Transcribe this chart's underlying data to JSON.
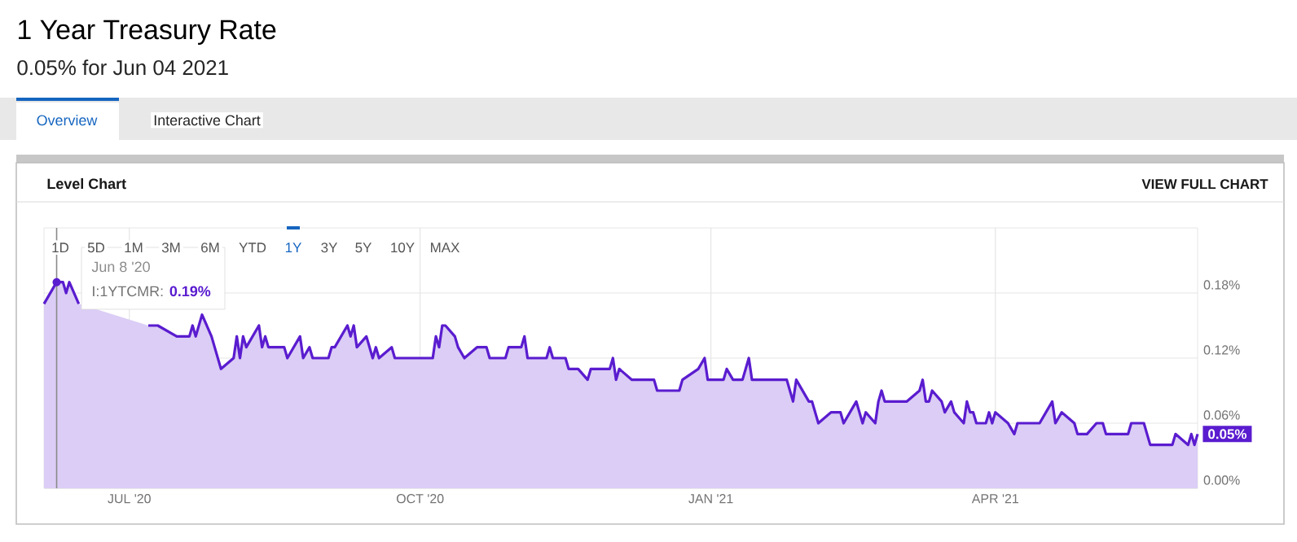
{
  "chart_data": {
    "type": "area",
    "title": "1 Year Treasury Rate",
    "subtitle": "0.05% for Jun 04 2021",
    "annotations": [
      "Overview",
      "Interactive Chart",
      "Level Chart",
      "VIEW FULL CHART",
      "1D",
      "5D",
      "1M",
      "3M",
      "6M",
      "YTD",
      "1Y",
      "3Y",
      "5Y",
      "10Y",
      "MAX",
      "Jun 8 '20",
      "I:1YTCMR:",
      "0.19%",
      {
        "text": "0.05%",
        "x": "2021-06-04",
        "y": 0.05
      }
    ],
    "x": [
      "2020-06-04",
      "2020-06-08",
      "2020-06-10",
      "2020-06-11",
      "2020-06-12",
      "2020-06-15",
      "2020-06-22",
      "2020-06-29",
      "2020-07-07",
      "2020-07-10",
      "2020-07-16",
      "2020-07-20",
      "2020-07-21",
      "2020-07-22",
      "2020-07-24",
      "2020-07-27",
      "2020-07-30",
      "2020-08-03",
      "2020-08-04",
      "2020-08-05",
      "2020-08-06",
      "2020-08-07",
      "2020-08-11",
      "2020-08-12",
      "2020-08-13",
      "2020-08-14",
      "2020-08-19",
      "2020-08-20",
      "2020-08-24",
      "2020-08-25",
      "2020-08-27",
      "2020-08-28",
      "2020-09-02",
      "2020-09-03",
      "2020-09-04",
      "2020-09-08",
      "2020-09-09",
      "2020-09-10",
      "2020-09-11",
      "2020-09-14",
      "2020-09-16",
      "2020-09-17",
      "2020-09-18",
      "2020-09-22",
      "2020-09-23",
      "2020-10-05",
      "2020-10-06",
      "2020-10-07",
      "2020-10-08",
      "2020-10-09",
      "2020-10-12",
      "2020-10-13",
      "2020-10-15",
      "2020-10-19",
      "2020-10-22",
      "2020-10-23",
      "2020-10-28",
      "2020-10-29",
      "2020-11-02",
      "2020-11-03",
      "2020-11-04",
      "2020-11-10",
      "2020-11-11",
      "2020-11-12",
      "2020-11-16",
      "2020-11-17",
      "2020-11-20",
      "2020-11-23",
      "2020-11-24",
      "2020-11-30",
      "2020-12-01",
      "2020-12-02",
      "2020-12-03",
      "2020-12-07",
      "2020-12-14",
      "2020-12-15",
      "2020-12-22",
      "2020-12-23",
      "2020-12-28",
      "2020-12-30",
      "2020-12-31",
      "2021-01-05",
      "2021-01-06",
      "2021-01-08",
      "2021-01-11",
      "2021-01-13",
      "2021-01-14",
      "2021-01-25",
      "2021-01-26",
      "2021-01-27",
      "2021-01-28",
      "2021-02-01",
      "2021-02-02",
      "2021-02-04",
      "2021-02-08",
      "2021-02-11",
      "2021-02-12",
      "2021-02-16",
      "2021-02-18",
      "2021-02-19",
      "2021-02-22",
      "2021-02-23",
      "2021-02-24",
      "2021-02-25",
      "2021-03-04",
      "2021-03-08",
      "2021-03-09",
      "2021-03-10",
      "2021-03-11",
      "2021-03-12",
      "2021-03-15",
      "2021-03-16",
      "2021-03-18",
      "2021-03-19",
      "2021-03-22",
      "2021-03-23",
      "2021-03-24",
      "2021-03-25",
      "2021-03-26",
      "2021-03-29",
      "2021-03-30",
      "2021-03-31",
      "2021-04-01",
      "2021-04-05",
      "2021-04-07",
      "2021-04-08",
      "2021-04-15",
      "2021-04-19",
      "2021-04-20",
      "2021-04-22",
      "2021-04-26",
      "2021-04-27",
      "2021-04-30",
      "2021-05-03",
      "2021-05-05",
      "2021-05-06",
      "2021-05-13",
      "2021-05-14",
      "2021-05-18",
      "2021-05-19",
      "2021-05-20",
      "2021-05-27",
      "2021-05-28",
      "2021-06-01",
      "2021-06-02",
      "2021-06-03",
      "2021-06-04"
    ],
    "values": [
      0.17,
      0.19,
      0.19,
      0.18,
      0.19,
      0.17,
      null,
      null,
      0.15,
      0.15,
      0.14,
      0.14,
      0.15,
      0.14,
      0.16,
      0.14,
      0.11,
      0.12,
      0.14,
      0.12,
      0.14,
      0.13,
      0.15,
      0.13,
      0.14,
      0.13,
      0.13,
      0.12,
      0.14,
      0.12,
      0.13,
      0.12,
      0.12,
      0.13,
      0.13,
      0.15,
      0.14,
      0.15,
      0.13,
      0.14,
      0.12,
      0.13,
      0.12,
      0.13,
      0.12,
      0.12,
      0.14,
      0.13,
      0.15,
      0.15,
      0.14,
      0.13,
      0.12,
      0.13,
      0.13,
      0.12,
      0.12,
      0.13,
      0.13,
      0.14,
      0.12,
      0.12,
      0.13,
      0.12,
      0.12,
      0.11,
      0.11,
      0.1,
      0.11,
      0.11,
      0.12,
      0.1,
      0.11,
      0.1,
      0.1,
      0.09,
      0.09,
      0.1,
      0.11,
      0.12,
      0.1,
      0.1,
      0.11,
      0.1,
      0.1,
      0.12,
      0.1,
      0.1,
      0.09,
      0.08,
      0.1,
      0.08,
      0.08,
      0.06,
      0.07,
      0.07,
      0.06,
      0.08,
      0.06,
      0.07,
      0.06,
      0.08,
      0.09,
      0.08,
      0.08,
      0.09,
      0.1,
      0.08,
      0.08,
      0.09,
      0.08,
      0.07,
      0.08,
      0.07,
      0.06,
      0.08,
      0.07,
      0.07,
      0.06,
      0.06,
      0.07,
      0.06,
      0.07,
      0.06,
      0.05,
      0.06,
      0.06,
      0.08,
      0.06,
      0.07,
      0.06,
      0.05,
      0.05,
      0.06,
      0.06,
      0.05,
      0.05,
      0.06,
      0.06,
      0.05,
      0.04,
      0.04,
      0.05,
      0.04,
      0.05,
      0.04,
      0.05
    ],
    "color": "#5a1ccf",
    "xlim": [
      "2020-06-04",
      "2021-06-04"
    ],
    "xticks": [
      {
        "value": "2020-07-01",
        "label": "JUL '20"
      },
      {
        "value": "2020-10-01",
        "label": "OCT '20"
      },
      {
        "value": "2021-01-01",
        "label": "JAN '21"
      },
      {
        "value": "2021-04-01",
        "label": "APR '21"
      }
    ],
    "ylim": [
      0,
      0.24
    ],
    "yticks": [
      {
        "value": 0,
        "label": "0.00%"
      },
      {
        "value": 0.06,
        "label": "0.06%"
      },
      {
        "value": 0.12,
        "label": "0.12%"
      },
      {
        "value": 0.18,
        "label": "0.18%"
      }
    ],
    "ref_lines": [
      {
        "axis": "x",
        "value": "2020-06-08",
        "color": "#8a8a8a"
      }
    ],
    "grid": true,
    "marker": "none",
    "line_style": "solid"
  }
}
